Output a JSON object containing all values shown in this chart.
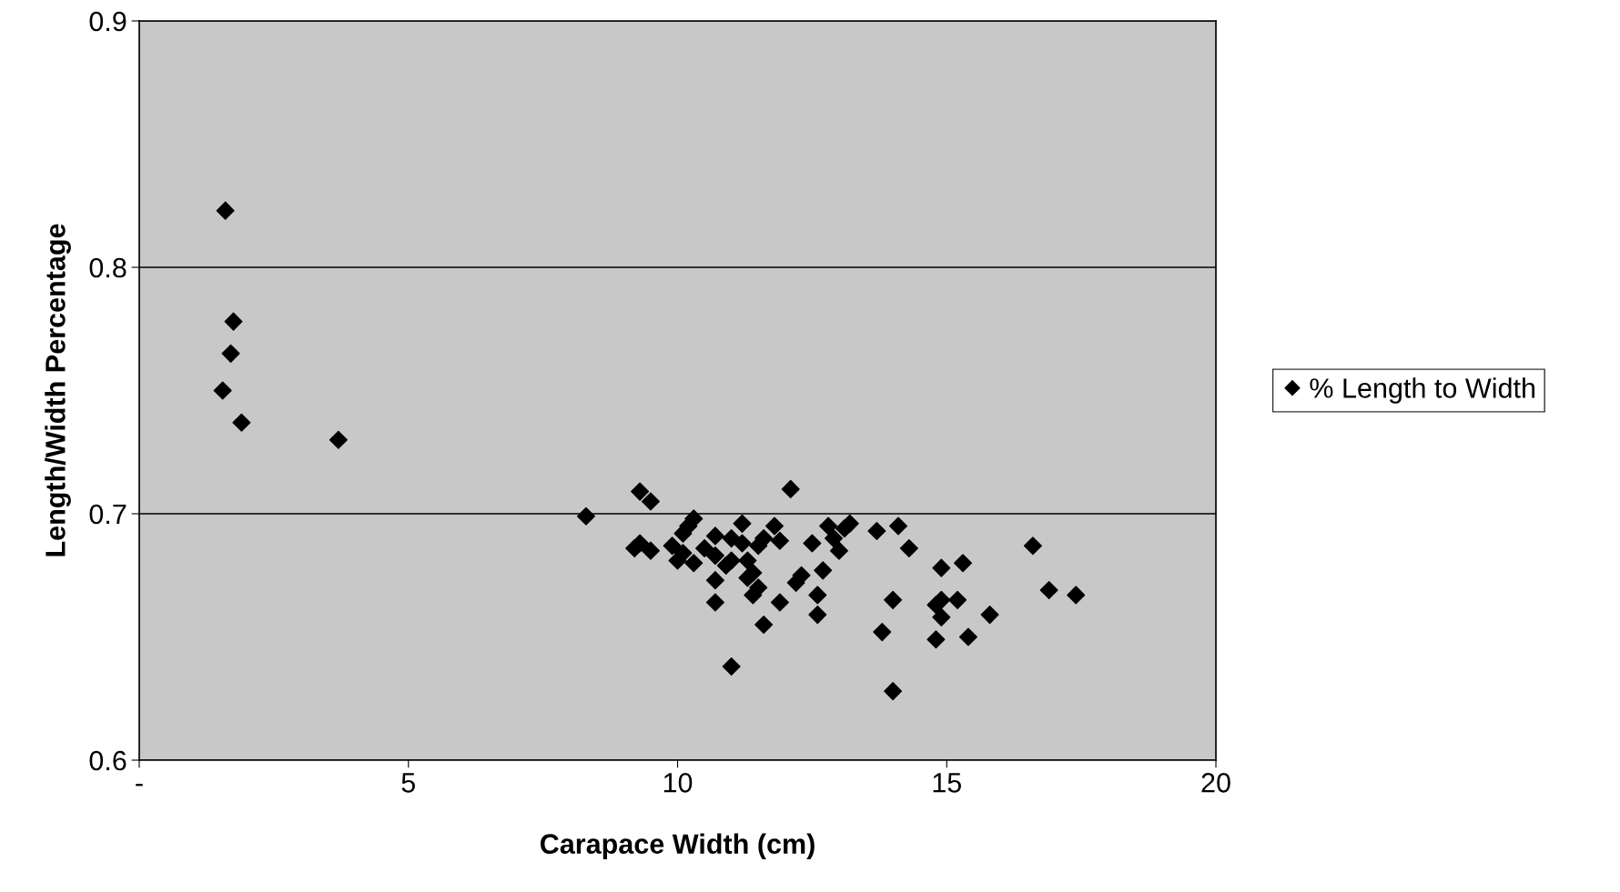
{
  "chart_data": {
    "type": "scatter",
    "xlabel": "Carapace Width (cm)",
    "ylabel": "Length/Width Percentage",
    "xlim": [
      0,
      20
    ],
    "xticks": [
      {
        "value": 0,
        "label": "-"
      },
      5,
      10,
      15,
      20
    ],
    "ylim": [
      0.6,
      0.9
    ],
    "yticks": [
      0.6,
      0.7,
      0.8,
      0.9
    ],
    "grid": "y",
    "legend": "right",
    "marker": "diamond",
    "series": [
      {
        "name": "% Length to Width",
        "color": "#000000",
        "x": [
          1.6,
          1.75,
          1.7,
          1.55,
          1.9,
          3.7,
          8.3,
          9.2,
          9.3,
          9.3,
          9.5,
          9.5,
          9.9,
          10.0,
          10.1,
          10.1,
          10.2,
          10.3,
          10.3,
          10.5,
          10.7,
          10.7,
          10.7,
          10.7,
          10.9,
          11.0,
          11.0,
          11.0,
          11.2,
          11.2,
          11.3,
          11.3,
          11.4,
          11.4,
          11.5,
          11.5,
          11.6,
          11.6,
          11.8,
          11.9,
          11.9,
          12.1,
          12.2,
          12.3,
          12.5,
          12.6,
          12.6,
          12.7,
          12.8,
          12.9,
          13.0,
          13.1,
          13.2,
          13.7,
          13.8,
          14.0,
          14.0,
          14.1,
          14.3,
          14.8,
          14.8,
          14.9,
          14.9,
          14.9,
          15.2,
          15.3,
          15.4,
          15.8,
          16.6,
          16.9,
          17.4
        ],
        "values": [
          0.823,
          0.778,
          0.765,
          0.75,
          0.737,
          0.73,
          0.699,
          0.686,
          0.709,
          0.688,
          0.705,
          0.685,
          0.687,
          0.681,
          0.684,
          0.692,
          0.695,
          0.698,
          0.68,
          0.686,
          0.691,
          0.683,
          0.673,
          0.664,
          0.679,
          0.681,
          0.69,
          0.638,
          0.696,
          0.688,
          0.681,
          0.674,
          0.676,
          0.667,
          0.67,
          0.687,
          0.69,
          0.655,
          0.695,
          0.689,
          0.664,
          0.71,
          0.672,
          0.675,
          0.688,
          0.667,
          0.659,
          0.677,
          0.695,
          0.69,
          0.685,
          0.694,
          0.696,
          0.693,
          0.652,
          0.665,
          0.628,
          0.695,
          0.686,
          0.649,
          0.663,
          0.678,
          0.665,
          0.658,
          0.665,
          0.68,
          0.65,
          0.659,
          0.687,
          0.669,
          0.667
        ]
      }
    ]
  }
}
